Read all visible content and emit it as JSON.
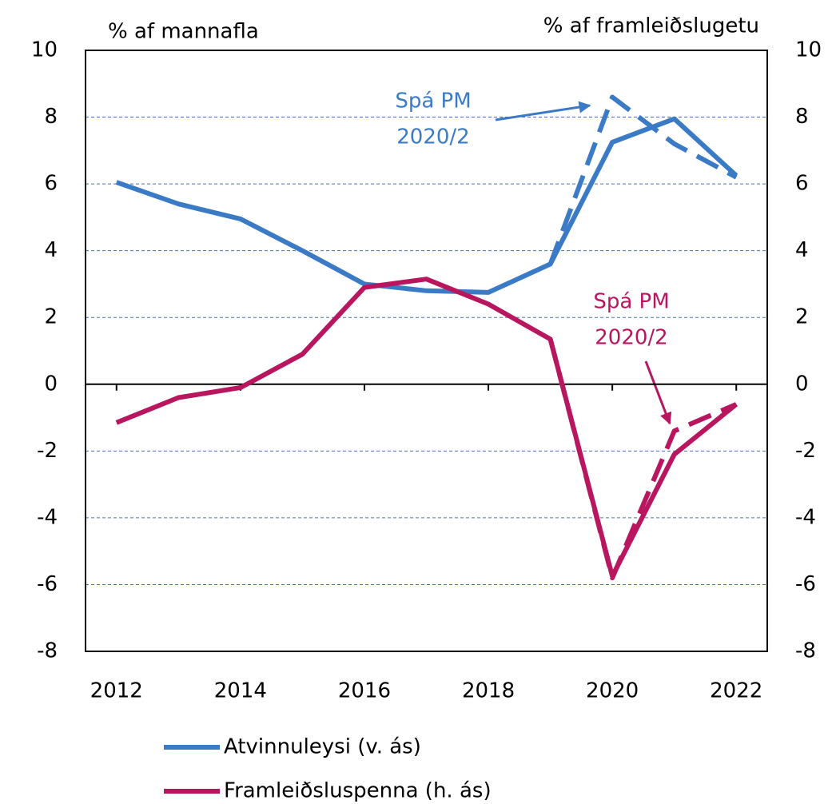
{
  "chart_data": {
    "type": "line",
    "y_label": "% af mannafla",
    "y2_label": "% af framleiðslugetu",
    "x": [
      2012,
      2013,
      2014,
      2015,
      2016,
      2017,
      2018,
      2019,
      2020,
      2021,
      2022
    ],
    "xlim": [
      2011.5,
      2022.5
    ],
    "xticks": [
      2012,
      2014,
      2016,
      2018,
      2020,
      2022
    ],
    "ylim": [
      -8,
      10
    ],
    "yticks": [
      -8,
      -6,
      -4,
      -2,
      0,
      2,
      4,
      6,
      8,
      10
    ],
    "y2lim": [
      -8,
      10
    ],
    "y2ticks": [
      -8,
      -6,
      -4,
      -2,
      0,
      2,
      4,
      6,
      8,
      10
    ],
    "grid": true,
    "series": [
      {
        "name": "Atvinnuleysi (v. ás)",
        "color": "#3b7bc6",
        "dashed": false,
        "values": [
          6.05,
          5.4,
          4.95,
          4.0,
          3.0,
          2.8,
          2.75,
          3.6,
          7.25,
          7.95,
          6.25
        ]
      },
      {
        "name": "Framleiðsluspenna (h. ás)",
        "color": "#b8165f",
        "dashed": false,
        "axis": "y2",
        "values": [
          -1.15,
          -0.4,
          -0.1,
          0.9,
          2.9,
          3.15,
          2.4,
          1.35,
          -5.75,
          -2.1,
          -0.6
        ]
      },
      {
        "color": "#3b7bc6",
        "dashed": true,
        "values": [
          null,
          null,
          null,
          null,
          null,
          null,
          null,
          3.6,
          8.6,
          7.2,
          6.2
        ]
      },
      {
        "color": "#b8165f",
        "dashed": true,
        "axis": "y2",
        "values": [
          null,
          null,
          null,
          null,
          null,
          null,
          null,
          1.35,
          -5.8,
          -1.4,
          -0.6
        ]
      }
    ],
    "annotations": [
      {
        "lines": [
          "Spá PM",
          "2020/2"
        ],
        "color": "#3b7bc6"
      },
      {
        "lines": [
          "Spá PM",
          "2020/2"
        ],
        "color": "#b8165f"
      }
    ]
  }
}
